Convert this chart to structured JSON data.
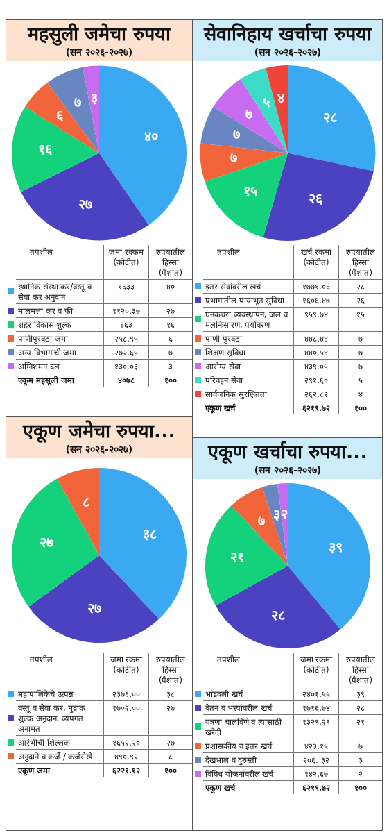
{
  "chart_data": [
    {
      "type": "pie",
      "title": "महसुली जमेचा रुपया",
      "subtitle": "(सन २०२६-२०२७)",
      "categories": [
        "स्थानिक संस्था कर/वस्तू व सेवा कर अनुदान",
        "मालमत्ता कर व फी",
        "शहर विकास शुल्क",
        "पाणीपुरवठा जमा",
        "अन्य विभागांची जमा",
        "अग्निशमन दल"
      ],
      "values": [
        40,
        27,
        16,
        6,
        7,
        3
      ],
      "value_labels": [
        "४०",
        "२७",
        "१६",
        "६",
        "७",
        "३"
      ],
      "colors": [
        "#3aa9f2",
        "#4a42c0",
        "#14d27c",
        "#f2653a",
        "#6a86c2",
        "#c76cf0"
      ],
      "legend": "bottom",
      "annotations": [
        "तपशील",
        "जमा रक्कम (कोटीत)",
        "रुपयातील हिस्सा (पैशात)",
        "१६३३",
        "११२०.३७",
        "६६३",
        "२५८.९५",
        "२७२.६५",
        "१३०.०३",
        "एकूम महसूली जमा",
        "४०७८",
        "१००"
      ]
    },
    {
      "type": "pie",
      "title": "सेवानिहाय खर्चाचा रुपया",
      "subtitle": "(सन २०२६-२०२७)",
      "categories": [
        "इतर सेवांवरील खर्च",
        "प्रभागातील पायाभूत सुविधा",
        "घनकचरा व्यवस्थापन, जल व मलनिःसारण, पर्यावरण",
        "पाणी पुरवठा",
        "शिक्षण सुविधा",
        "आरोग्य सेवा",
        "परिवहन सेवा",
        "सार्वजनिक सुरक्षितता"
      ],
      "values": [
        28,
        26,
        15,
        7,
        7,
        7,
        5,
        4
      ],
      "value_labels": [
        "२८",
        "२६",
        "१५",
        "७",
        "७",
        "७",
        "५",
        "४"
      ],
      "colors": [
        "#3aa9f2",
        "#4a42c0",
        "#14d27c",
        "#f2653a",
        "#6a86c2",
        "#c76cf0",
        "#3ddcc6",
        "#f0443a"
      ],
      "legend": "bottom",
      "annotations": [
        "तपशील",
        "खर्च रकमा (कोटीत)",
        "रुपयातील हिस्सा (पैशात)",
        "१७७१.०६",
        "१६०६.४७",
        "९५९.७४",
        "४४८.४४",
        "४४०.५४",
        "४३९.०५",
        "२९१.६०",
        "२६२.८२",
        "एकूण खर्च",
        "६२१९.७२",
        "१००"
      ]
    },
    {
      "type": "pie",
      "title": "एकूण जमेचा रुपया...",
      "subtitle": "(सन २०२६-२०२७)",
      "categories": [
        "महापालिकेचे उत्पन्न",
        "वस्तू व सेवा कर, मुद्रांक शुल्क अनुदान, व्यपगत अनामत",
        "आरंभीची शिल्लक",
        "अनुदाने व कर्जे / कर्जरोखे"
      ],
      "values": [
        38,
        27,
        27,
        8
      ],
      "value_labels": [
        "३८",
        "२७",
        "२७",
        "८"
      ],
      "colors": [
        "#3aa9f2",
        "#4a42c0",
        "#14d27c",
        "#f2653a"
      ],
      "legend": "bottom",
      "annotations": [
        "तपशील",
        "जमा रकमा (कोटीत)",
        "रुपयातील हिस्सा (पैशात)",
        "२३७६.००",
        "१७०२.००",
        "१६५२.२०",
        "४९०.९२",
        "एकूण जमा",
        "६२२१.१२",
        "१००"
      ]
    },
    {
      "type": "pie",
      "title": "एकूण खर्चाचा रुपया...",
      "subtitle": "(सन २०२६-२०२७)",
      "categories": [
        "भांडवली खर्च",
        "वेतन व भत्त्यांवरील खर्च",
        "यंत्रणा चालविणे व त्यासाठी खरेदी",
        "प्रशासकीय व इतर खर्च",
        "देखभाल व दुरुस्ती",
        "विविध योजनांवरील खर्च"
      ],
      "values": [
        39,
        28,
        21,
        7,
        3,
        2
      ],
      "value_labels": [
        "३९",
        "२८",
        "२१",
        "७",
        "३",
        "२"
      ],
      "colors": [
        "#3aa9f2",
        "#4a42c0",
        "#14d27c",
        "#f2653a",
        "#6a86c2",
        "#c76cf0"
      ],
      "legend": "bottom",
      "annotations": [
        "तपशील",
        "जमा रकमा (कोटीत)",
        "रुपयातील हिस्सा (पैशात)",
        "२४०१.५५",
        "१७१६.७४",
        "१३२९.२९",
        "४२३.१५",
        "२०६. ३२",
        "१४२.६७",
        "एकूण खर्च",
        "६२१९.७२",
        "१००"
      ]
    }
  ]
}
